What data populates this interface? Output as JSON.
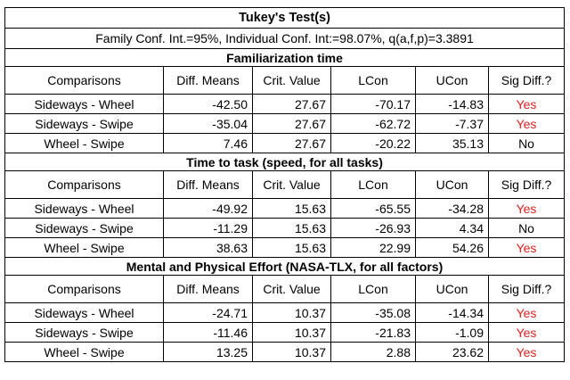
{
  "title": "Tukey's Test(s)",
  "subtitle": "Family Conf. Int.=95%, Individual Conf. Int:=98.07%, q(a,f,p)=3.3891",
  "colors": {
    "yes": "#e02020",
    "no": "#000000"
  },
  "sections": [
    {
      "title": "Familiarization time",
      "headers": [
        "Comparisons",
        "Diff. Means",
        "Crit. Value",
        "LCon",
        "UCon",
        "Sig Diff.?"
      ],
      "rows": [
        {
          "comparison": "Sideways - Wheel",
          "diff": "-42.50",
          "crit": "27.67",
          "lcon": "-70.17",
          "ucon": "-14.83",
          "sig": "Yes"
        },
        {
          "comparison": "Sideways - Swipe",
          "diff": "-35.04",
          "crit": "27.67",
          "lcon": "-62.72",
          "ucon": "-7.37",
          "sig": "Yes"
        },
        {
          "comparison": "Wheel - Swipe",
          "diff": "7.46",
          "crit": "27.67",
          "lcon": "-20.22",
          "ucon": "35.13",
          "sig": "No"
        }
      ]
    },
    {
      "title": "Time to task (speed, for all tasks)",
      "headers": [
        "Comparisons",
        "Diff. Means",
        "Crit. Value",
        "LCon",
        "UCon",
        "Sig Diff.?"
      ],
      "rows": [
        {
          "comparison": "Sideways - Wheel",
          "diff": "-49.92",
          "crit": "15.63",
          "lcon": "-65.55",
          "ucon": "-34.28",
          "sig": "Yes"
        },
        {
          "comparison": "Sideways - Swipe",
          "diff": "-11.29",
          "crit": "15.63",
          "lcon": "-26.93",
          "ucon": "4.34",
          "sig": "No"
        },
        {
          "comparison": "Wheel - Swipe",
          "diff": "38.63",
          "crit": "15.63",
          "lcon": "22.99",
          "ucon": "54.26",
          "sig": "Yes"
        }
      ]
    },
    {
      "title": "Mental and Physical Effort (NASA-TLX, for all factors)",
      "headers": [
        "Comparisons",
        "Diff. Means",
        "Crit. Value",
        "LCon",
        "UCon",
        "Sig Diff.?"
      ],
      "rows": [
        {
          "comparison": "Sideways - Wheel",
          "diff": "-24.71",
          "crit": "10.37",
          "lcon": "-35.08",
          "ucon": "-14.34",
          "sig": "Yes"
        },
        {
          "comparison": "Sideways - Swipe",
          "diff": "-11.46",
          "crit": "10.37",
          "lcon": "-21.83",
          "ucon": "-1.09",
          "sig": "Yes"
        },
        {
          "comparison": "Wheel - Swipe",
          "diff": "13.25",
          "crit": "10.37",
          "lcon": "2.88",
          "ucon": "23.62",
          "sig": "Yes"
        }
      ]
    }
  ]
}
